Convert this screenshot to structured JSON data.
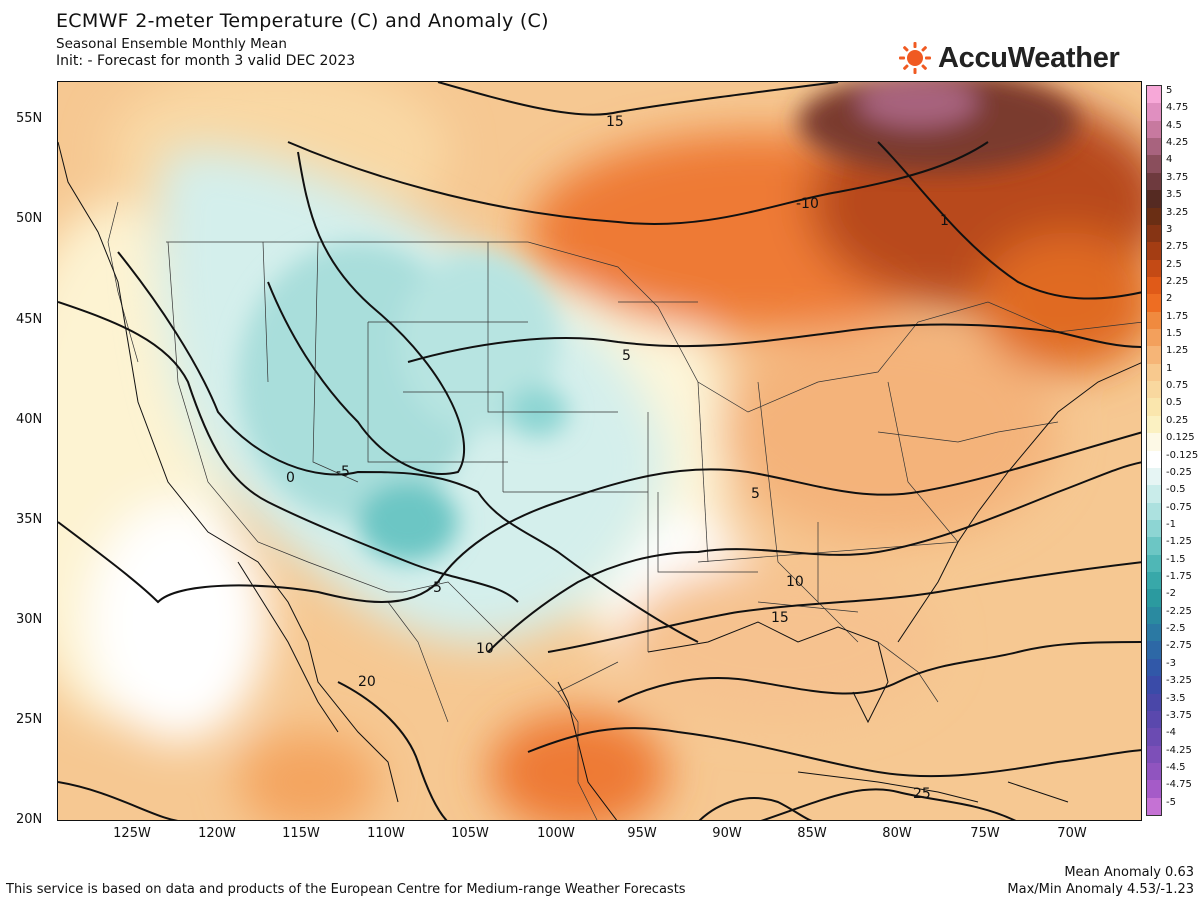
{
  "header": {
    "title": "ECMWF 2-meter Temperature (C) and Anomaly (C)",
    "subtitle": "Seasonal Ensemble Monthly Mean",
    "init_line": "Init:   - Forecast for month 3 valid DEC 2023"
  },
  "brand": {
    "name": "AccuWeather",
    "icon": "sun-icon",
    "color": "#f05a22"
  },
  "map": {
    "region": "Continental United States, southern Canada, northern Mexico",
    "lat_labels": [
      "55N",
      "50N",
      "45N",
      "40N",
      "35N",
      "30N",
      "25N",
      "20N"
    ],
    "lon_labels": [
      "125W",
      "120W",
      "115W",
      "110W",
      "105W",
      "100W",
      "95W",
      "90W",
      "85W",
      "80W",
      "75W",
      "70W"
    ],
    "contour_labels": [
      "15",
      "-10",
      "-5",
      "5",
      "0",
      "-5",
      "5",
      "10",
      "15",
      "10",
      "20",
      "25",
      "1",
      "5"
    ]
  },
  "colorbar": {
    "labels": [
      "5",
      "4.75",
      "4.5",
      "4.25",
      "4",
      "3.75",
      "3.5",
      "3.25",
      "3",
      "2.75",
      "2.5",
      "2.25",
      "2",
      "1.75",
      "1.5",
      "1.25",
      "1",
      "0.75",
      "0.5",
      "0.25",
      "0.125",
      "-0.125",
      "-0.25",
      "-0.5",
      "-0.75",
      "-1",
      "-1.25",
      "-1.5",
      "-1.75",
      "-2",
      "-2.25",
      "-2.5",
      "-2.75",
      "-3",
      "-3.25",
      "-3.5",
      "-3.75",
      "-4",
      "-4.25",
      "-4.5",
      "-4.75",
      "-5"
    ],
    "colors": [
      "#f7a8d8",
      "#e08fc0",
      "#c7799f",
      "#a8637e",
      "#8a4e5c",
      "#6e3a3e",
      "#552a22",
      "#6a2e14",
      "#863414",
      "#a43d13",
      "#c44a15",
      "#e05a18",
      "#ee6d22",
      "#f08a3f",
      "#f3a05c",
      "#f6b577",
      "#f8c98e",
      "#f9d89f",
      "#fae6ad",
      "#fbf1c2",
      "#fdf9e6",
      "#ffffff",
      "#e6f5f4",
      "#c9ecea",
      "#ace1df",
      "#8dd5d3",
      "#6cc6c4",
      "#4fb7b6",
      "#38a8a9",
      "#2b9a9f",
      "#2a8aa0",
      "#2b79a3",
      "#2d68a6",
      "#3158a8",
      "#3a4ba8",
      "#4a47a8",
      "#5a48ad",
      "#6b4bb2",
      "#7d4fb8",
      "#9054bf",
      "#a55bc8",
      "#c572d4"
    ]
  },
  "footer": {
    "attribution": "This service is based on data and products of the European Centre for Medium-range Weather Forecasts",
    "mean_anomaly": "Mean Anomaly 0.63",
    "maxmin_anomaly": "Max/Min Anomaly 4.53/-1.23"
  }
}
